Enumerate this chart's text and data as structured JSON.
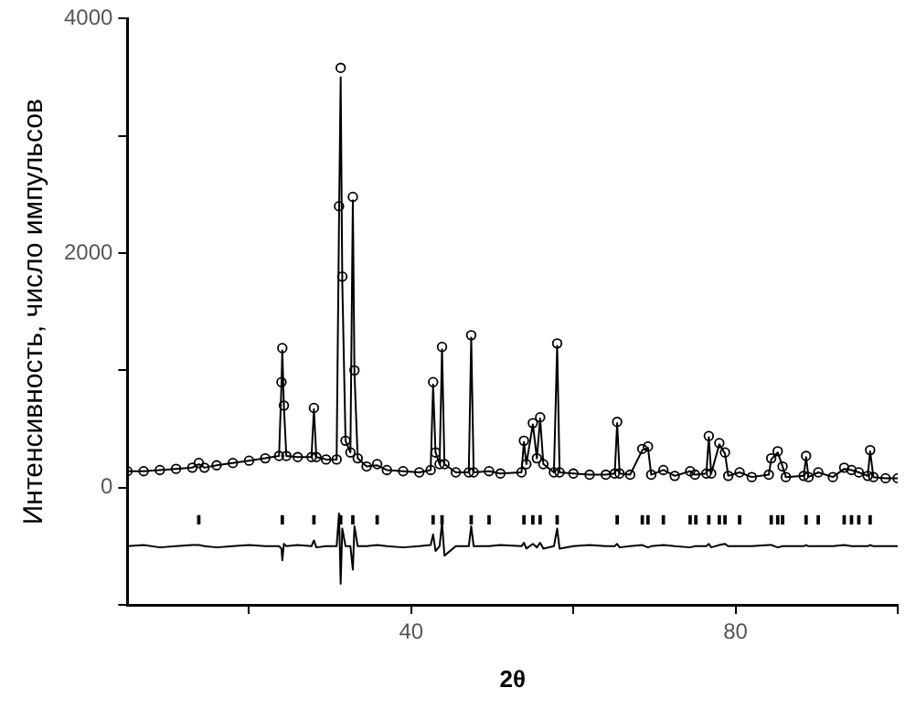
{
  "chart_data": {
    "type": "scatter",
    "xlabel": "2θ",
    "ylabel": "Интенсивность, число импульсов",
    "x": [
      5,
      7,
      9,
      11,
      13,
      13.8,
      14.5,
      16,
      18,
      20,
      22,
      23.7,
      24.0,
      24.1,
      24.3,
      24.6,
      26,
      27.7,
      28.0,
      28.3,
      29.5,
      30.8,
      31.1,
      31.3,
      31.5,
      31.9,
      32.5,
      32.8,
      33.0,
      33.4,
      34.5,
      35.8,
      37,
      39,
      41,
      42.4,
      42.7,
      43.0,
      43.5,
      43.8,
      44.1,
      45.5,
      47.1,
      47.4,
      47.7,
      49.6,
      51,
      53.6,
      53.9,
      54.2,
      55.0,
      55.5,
      55.9,
      56.3,
      57.6,
      58.0,
      58.3,
      60,
      62,
      64,
      65.1,
      65.4,
      65.7,
      67,
      68.5,
      69.2,
      69.6,
      71.1,
      72.5,
      74.4,
      75,
      76.4,
      76.7,
      77.0,
      78.0,
      78.7,
      79.1,
      80.5,
      82,
      84.1,
      84.4,
      85.2,
      85.8,
      86.2,
      88.4,
      88.7,
      89.0,
      90.2,
      92,
      93.4,
      94.3,
      95.2,
      96.3,
      96.6,
      97,
      98.5,
      100
    ],
    "series": [
      {
        "marker": "circle",
        "color": "#000000",
        "values": [
          140,
          140,
          150,
          160,
          170,
          210,
          170,
          190,
          210,
          230,
          250,
          270,
          900,
          1190,
          700,
          270,
          260,
          260,
          680,
          260,
          240,
          240,
          2400,
          3580,
          1800,
          400,
          300,
          2480,
          1000,
          250,
          180,
          200,
          150,
          140,
          130,
          150,
          900,
          300,
          200,
          1200,
          200,
          130,
          130,
          1300,
          130,
          140,
          120,
          130,
          400,
          200,
          550,
          250,
          600,
          200,
          130,
          1230,
          130,
          120,
          110,
          110,
          120,
          560,
          120,
          110,
          330,
          350,
          110,
          150,
          100,
          140,
          110,
          120,
          440,
          120,
          380,
          300,
          100,
          130,
          90,
          110,
          250,
          310,
          180,
          90,
          100,
          270,
          90,
          130,
          90,
          170,
          150,
          130,
          100,
          320,
          90,
          80,
          80
        ]
      },
      {
        "type": "line",
        "marker": "none",
        "color": "#000000",
        "values": [
          140,
          140,
          150,
          160,
          170,
          200,
          170,
          190,
          210,
          230,
          250,
          270,
          880,
          1170,
          690,
          270,
          260,
          260,
          670,
          260,
          240,
          240,
          2300,
          3500,
          1750,
          400,
          300,
          2450,
          980,
          250,
          180,
          190,
          150,
          140,
          130,
          150,
          880,
          300,
          200,
          1180,
          200,
          130,
          130,
          1280,
          130,
          140,
          120,
          130,
          390,
          200,
          540,
          250,
          590,
          200,
          130,
          1210,
          130,
          120,
          110,
          110,
          120,
          550,
          120,
          110,
          320,
          340,
          110,
          150,
          100,
          140,
          110,
          120,
          430,
          120,
          370,
          290,
          100,
          130,
          90,
          110,
          240,
          300,
          180,
          90,
          100,
          260,
          90,
          130,
          90,
          160,
          150,
          130,
          100,
          310,
          90,
          80,
          80
        ]
      },
      {
        "type": "line",
        "marker": "none",
        "color": "#000000",
        "values": [
          -500,
          -490,
          -510,
          -500,
          -490,
          -490,
          -500,
          -510,
          -500,
          -490,
          -500,
          -500,
          -520,
          -620,
          -480,
          -500,
          -490,
          -500,
          -450,
          -510,
          -500,
          -500,
          -220,
          -820,
          -350,
          -500,
          -500,
          -700,
          -330,
          -500,
          -500,
          -490,
          -500,
          -510,
          -500,
          -490,
          -400,
          -540,
          -500,
          -300,
          -580,
          -500,
          -500,
          -330,
          -500,
          -500,
          -490,
          -500,
          -470,
          -520,
          -480,
          -510,
          -470,
          -520,
          -500,
          -350,
          -520,
          -500,
          -490,
          -500,
          -500,
          -480,
          -510,
          -500,
          -490,
          -510,
          -500,
          -490,
          -500,
          -510,
          -500,
          -500,
          -480,
          -510,
          -490,
          -480,
          -500,
          -500,
          -500,
          -490,
          -490,
          -510,
          -500,
          -500,
          -500,
          -490,
          -500,
          -500,
          -500,
          -490,
          -500,
          -500,
          -500,
          -490,
          -500,
          -500,
          -500
        ]
      },
      {
        "type": "bar",
        "color": "#000000",
        "x": [
          13.8,
          24.1,
          28.0,
          31.3,
          32.8,
          35.8,
          42.7,
          43.8,
          47.4,
          49.6,
          53.9,
          55.0,
          55.9,
          58.0,
          65.4,
          68.5,
          69.2,
          71.1,
          74.4,
          75.1,
          76.7,
          78.0,
          78.7,
          80.5,
          84.4,
          85.2,
          85.8,
          88.7,
          90.2,
          93.4,
          94.3,
          95.2,
          96.6
        ],
        "base": [
          -310,
          -310,
          -310,
          -310,
          -310,
          -310,
          -310,
          -310,
          -310,
          -310,
          -310,
          -310,
          -310,
          -310,
          -310,
          -310,
          -310,
          -310,
          -310,
          -310,
          -310,
          -310,
          -310,
          -310,
          -310,
          -310,
          -310,
          -310,
          -310,
          -310,
          -310,
          -310,
          -310
        ],
        "values": [
          70,
          70,
          70,
          70,
          70,
          70,
          70,
          70,
          70,
          70,
          70,
          70,
          70,
          70,
          70,
          70,
          70,
          70,
          70,
          70,
          70,
          70,
          70,
          70,
          70,
          70,
          70,
          70,
          70,
          70,
          70,
          70,
          70
        ]
      }
    ],
    "xlim": [
      5,
      100
    ],
    "xticks": [
      {
        "value": 20,
        "label": null
      },
      40,
      {
        "value": 60,
        "label": null
      },
      80,
      {
        "value": 100,
        "label": null
      }
    ],
    "ylim": [
      -1000,
      4000
    ],
    "yticks": [
      {
        "value": -1000,
        "label": null
      },
      0,
      {
        "value": 1000,
        "label": null
      },
      2000,
      {
        "value": 3000,
        "label": null
      },
      4000
    ],
    "grid": false,
    "legend": false
  }
}
